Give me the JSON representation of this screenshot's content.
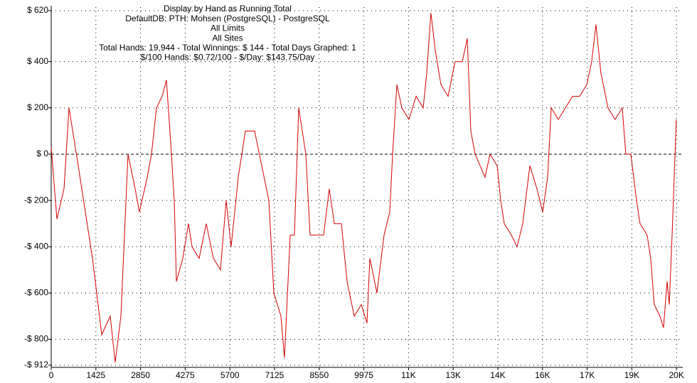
{
  "chart_data": {
    "type": "line",
    "title_lines": [
      "Display by Hand as Running Total",
      "DefaultDB: PTH: Mohsen (PostgreSQL) - PostgreSQL",
      "All Limits",
      "All Sites",
      "Total Hands: 19,944 - Total Winnings: $ 144 - Total Days Graphed: 1",
      "$/100 Hands: $0.72/100 - $/Day: $143.75/Day"
    ],
    "x": [
      0,
      182,
      408,
      567,
      862,
      1089,
      1316,
      1611,
      1883,
      2042,
      2224,
      2451,
      2677,
      2814,
      3063,
      3199,
      3358,
      3540,
      3676,
      3812,
      3925,
      3993,
      4197,
      4379,
      4492,
      4719,
      4946,
      5173,
      5400,
      5581,
      5740,
      5967,
      6194,
      6489,
      6716,
      6943,
      7102,
      7329,
      7442,
      7624,
      7760,
      7896,
      8123,
      8259,
      8463,
      8690,
      8872,
      9031,
      9258,
      9439,
      9666,
      9893,
      10075,
      10165,
      10392,
      10619,
      10800,
      10891,
      11027,
      11186,
      11413,
      11640,
      11867,
      11980,
      12116,
      12252,
      12434,
      12661,
      12887,
      13115,
      13274,
      13387,
      13523,
      13682,
      13841,
      14000,
      14227,
      14341,
      14454,
      14681,
      14862,
      15044,
      15271,
      15498,
      15679,
      15838,
      15951,
      16178,
      16405,
      16632,
      16859,
      17086,
      17244,
      17380,
      17539,
      17766,
      17993,
      18220,
      18333,
      18492,
      18674,
      18787,
      19014,
      19127,
      19241,
      19422,
      19536,
      19650,
      19718,
      19809,
      19944
    ],
    "series": [
      {
        "name": "Running Total",
        "color": "#d40000",
        "values": [
          30,
          -280,
          -150,
          200,
          -50,
          -250,
          -450,
          -780,
          -700,
          -900,
          -700,
          0,
          -150,
          -250,
          -100,
          0,
          200,
          250,
          320,
          50,
          -200,
          -550,
          -450,
          -300,
          -400,
          -450,
          -300,
          -450,
          -500,
          -200,
          -400,
          -100,
          100,
          100,
          -50,
          -200,
          -600,
          -700,
          -880,
          -350,
          -350,
          200,
          0,
          -350,
          -350,
          -350,
          -150,
          -300,
          -300,
          -550,
          -700,
          -650,
          -730,
          -450,
          -600,
          -350,
          -250,
          0,
          300,
          200,
          150,
          250,
          200,
          350,
          610,
          450,
          300,
          250,
          400,
          400,
          500,
          100,
          0,
          -50,
          -100,
          0,
          -50,
          -200,
          -300,
          -350,
          -400,
          -300,
          -50,
          -150,
          -250,
          -100,
          200,
          150,
          200,
          250,
          250,
          300,
          400,
          560,
          350,
          200,
          150,
          200,
          0,
          0,
          -200,
          -300,
          -350,
          -450,
          -650,
          -700,
          -750,
          -550,
          -650,
          -350,
          150
        ]
      }
    ],
    "xlim": [
      0,
      20150
    ],
    "xticks": [
      0,
      1425,
      2850,
      4275,
      5700,
      7125,
      8550,
      9975,
      {
        "value": 11400,
        "label": "11K"
      },
      {
        "value": 12825,
        "label": "13K"
      },
      {
        "value": 14250,
        "label": "14K"
      },
      {
        "value": 15675,
        "label": "16K"
      },
      {
        "value": 17100,
        "label": "17K"
      },
      {
        "value": 18525,
        "label": "19K"
      },
      {
        "value": 19950,
        "label": "20K"
      }
    ],
    "ylim": [
      -912,
      620
    ],
    "yticks": [
      {
        "value": 620,
        "label": "$ 620"
      },
      {
        "value": 400,
        "label": "$ 400"
      },
      {
        "value": 200,
        "label": "$ 200"
      },
      {
        "value": 0,
        "label": "$ 0"
      },
      {
        "value": -200,
        "label": "-$ 200"
      },
      {
        "value": -400,
        "label": "-$ 400"
      },
      {
        "value": -600,
        "label": "-$ 600"
      },
      {
        "value": -800,
        "label": "-$ 800"
      },
      {
        "value": -912,
        "label": "-$ 912"
      }
    ],
    "grid": true
  }
}
